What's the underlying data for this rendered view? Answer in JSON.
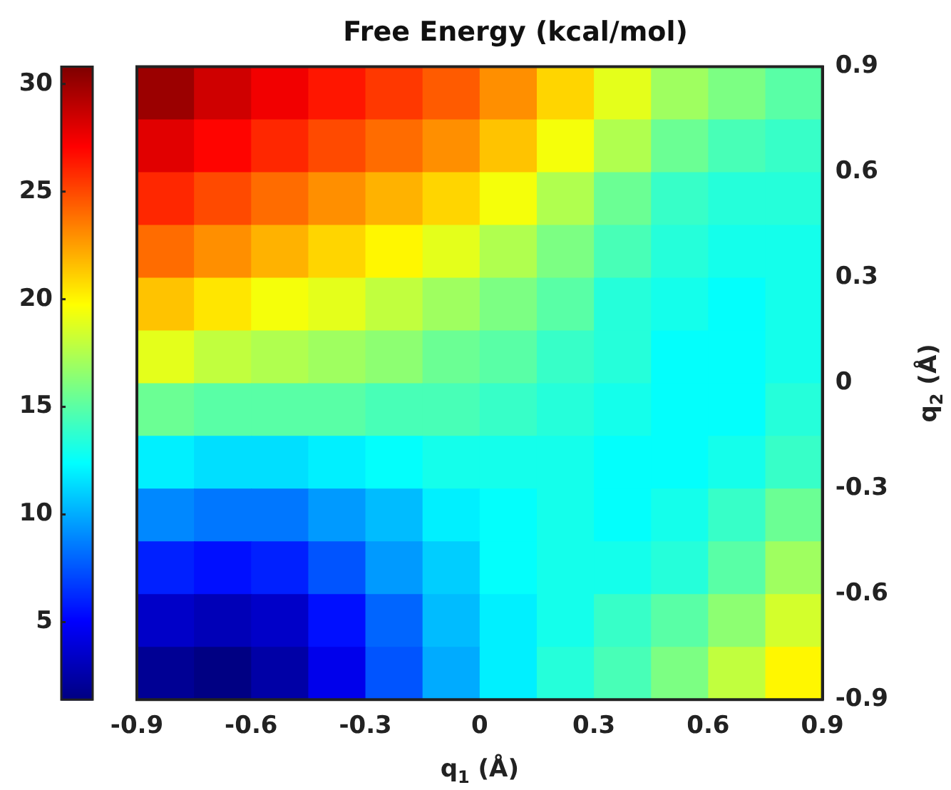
{
  "chart_data": {
    "type": "heatmap",
    "title": "Free Energy (kcal/mol)",
    "xlabel": "q$_{1}$ (Å)",
    "ylabel": "q$_{2}$ (Å)",
    "x": [
      -0.825,
      -0.675,
      -0.525,
      -0.375,
      -0.225,
      -0.075,
      0.075,
      0.225,
      0.375,
      0.525,
      0.675,
      0.825
    ],
    "y": [
      0.825,
      0.675,
      0.525,
      0.375,
      0.225,
      0.075,
      -0.075,
      -0.225,
      -0.375,
      -0.525,
      -0.675,
      -0.825
    ],
    "cells": [
      [
        30,
        28.5,
        27.5,
        26.5,
        25.5,
        24.5,
        23,
        21,
        19,
        17,
        16,
        15
      ],
      [
        28,
        27,
        26,
        25,
        24,
        23,
        21.5,
        19.5,
        17.5,
        15.5,
        14.5,
        14
      ],
      [
        26,
        25,
        24,
        23,
        22,
        21,
        19.5,
        17.5,
        15.5,
        14,
        13.5,
        13.5
      ],
      [
        24,
        23,
        22,
        21,
        20,
        19,
        17.5,
        16,
        14.5,
        13.5,
        13,
        13
      ],
      [
        21.5,
        20.5,
        19.5,
        19,
        18,
        17,
        16,
        15,
        13.5,
        13,
        12.5,
        13
      ],
      [
        19,
        18,
        17.5,
        17,
        16.5,
        15.5,
        15,
        14,
        13.5,
        12.5,
        12.5,
        13
      ],
      [
        15.5,
        15,
        15,
        15,
        14.5,
        14.5,
        14,
        13.5,
        13,
        12.5,
        12.5,
        13.5
      ],
      [
        12,
        11.5,
        11.5,
        12,
        12.5,
        13,
        13,
        13,
        12.5,
        12.5,
        13,
        14
      ],
      [
        9,
        8.5,
        8.5,
        9.5,
        10.5,
        12,
        12.5,
        13,
        12.5,
        13,
        14,
        15.5
      ],
      [
        6,
        5.5,
        6,
        7.5,
        9.5,
        11,
        12.5,
        13,
        13,
        13.5,
        15,
        17
      ],
      [
        3.5,
        3,
        3.5,
        5.5,
        8,
        10.5,
        12,
        13,
        14,
        15,
        16.5,
        18.5
      ],
      [
        2,
        1.5,
        2.5,
        4.5,
        7.5,
        10,
        12,
        13.5,
        14.5,
        16,
        18,
        20
      ]
    ],
    "clim": [
      1.4,
      30.8
    ],
    "cticks": [
      5,
      10,
      15,
      20,
      25,
      30
    ],
    "xlim": [
      -0.9,
      0.9
    ],
    "xticks": [
      -0.9,
      -0.6,
      -0.3,
      0,
      0.3,
      0.6,
      0.9
    ],
    "ylim": [
      -0.9,
      0.9
    ],
    "yticks": [
      -0.9,
      -0.6,
      -0.3,
      0,
      0.3,
      0.6,
      0.9
    ]
  }
}
